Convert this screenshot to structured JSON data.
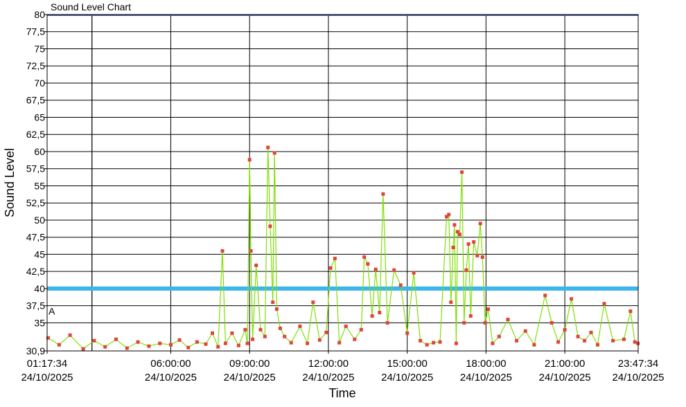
{
  "chart_data": {
    "type": "line",
    "title": "Sound Level Chart",
    "xlabel": "Time",
    "ylabel": "Sound Level",
    "ylim": [
      30.9,
      80
    ],
    "y_ticks": [
      "80",
      "77,5",
      "75",
      "72,5",
      "70",
      "67,5",
      "65",
      "62,5",
      "60",
      "57,5",
      "55",
      "52,5",
      "50",
      "47,5",
      "45",
      "42,5",
      "40",
      "37,5",
      "35",
      "30,9"
    ],
    "x_ticks": [
      {
        "time": "01:17:34",
        "date": "24/10/2025"
      },
      {
        "time": "06:00:00",
        "date": "24/10/2025"
      },
      {
        "time": "09:00:00",
        "date": "24/10/2025"
      },
      {
        "time": "12:00:00",
        "date": "24/10/2025"
      },
      {
        "time": "15:00:00",
        "date": "24/10/2025"
      },
      {
        "time": "18:00:00",
        "date": "24/10/2025"
      },
      {
        "time": "21:00:00",
        "date": "24/10/2025"
      },
      {
        "time": "23:47:34",
        "date": "24/10/2025"
      }
    ],
    "xlim": [
      "01:17:34",
      "23:47:34"
    ],
    "grid": true,
    "threshold": {
      "value": 40,
      "color": "#3cb4ec"
    },
    "top_line": {
      "value": 80,
      "color": "#4a5a9a"
    },
    "marker_label": {
      "text": "A",
      "value": 36.7
    },
    "series": [
      {
        "color": "#7ee000",
        "marker_color": "#e0443a",
        "points": [
          [
            "01:20",
            32.8
          ],
          [
            "01:45",
            31.8
          ],
          [
            "02:10",
            33.2
          ],
          [
            "02:40",
            31.2
          ],
          [
            "03:05",
            32.4
          ],
          [
            "03:30",
            31.5
          ],
          [
            "03:55",
            32.6
          ],
          [
            "04:20",
            31.3
          ],
          [
            "04:45",
            32.2
          ],
          [
            "05:10",
            31.6
          ],
          [
            "05:35",
            32.0
          ],
          [
            "06:00",
            31.8
          ],
          [
            "06:20",
            32.5
          ],
          [
            "06:40",
            31.4
          ],
          [
            "07:00",
            32.2
          ],
          [
            "07:20",
            31.9
          ],
          [
            "07:35",
            33.5
          ],
          [
            "07:48",
            31.5
          ],
          [
            "07:58",
            45.5
          ],
          [
            "08:05",
            32.0
          ],
          [
            "08:20",
            33.5
          ],
          [
            "08:35",
            31.7
          ],
          [
            "08:50",
            34.0
          ],
          [
            "08:55",
            32.0
          ],
          [
            "09:00",
            58.8
          ],
          [
            "09:03",
            45.5
          ],
          [
            "09:07",
            32.6
          ],
          [
            "09:15",
            43.4
          ],
          [
            "09:25",
            34.0
          ],
          [
            "09:35",
            33.0
          ],
          [
            "09:42",
            60.6
          ],
          [
            "09:47",
            49.1
          ],
          [
            "09:53",
            38.0
          ],
          [
            "09:57",
            59.8
          ],
          [
            "10:02",
            37.0
          ],
          [
            "10:10",
            34.2
          ],
          [
            "10:20",
            33.0
          ],
          [
            "10:35",
            32.1
          ],
          [
            "10:55",
            34.5
          ],
          [
            "11:12",
            32.0
          ],
          [
            "11:25",
            38.0
          ],
          [
            "11:40",
            32.5
          ],
          [
            "11:55",
            33.6
          ],
          [
            "12:05",
            43.0
          ],
          [
            "12:15",
            44.4
          ],
          [
            "12:25",
            32.1
          ],
          [
            "12:40",
            34.5
          ],
          [
            "13:00",
            32.6
          ],
          [
            "13:15",
            34.0
          ],
          [
            "13:22",
            44.6
          ],
          [
            "13:30",
            43.6
          ],
          [
            "13:40",
            36.0
          ],
          [
            "13:48",
            42.8
          ],
          [
            "13:57",
            36.5
          ],
          [
            "14:05",
            53.8
          ],
          [
            "14:15",
            35.0
          ],
          [
            "14:30",
            42.7
          ],
          [
            "14:45",
            40.5
          ],
          [
            "15:00",
            33.5
          ],
          [
            "15:15",
            42.3
          ],
          [
            "15:30",
            32.4
          ],
          [
            "15:45",
            31.8
          ],
          [
            "16:00",
            32.1
          ],
          [
            "16:15",
            32.2
          ],
          [
            "16:30",
            50.5
          ],
          [
            "16:35",
            50.8
          ],
          [
            "16:40",
            38.0
          ],
          [
            "16:45",
            46.0
          ],
          [
            "16:48",
            49.3
          ],
          [
            "16:52",
            32.0
          ],
          [
            "16:55",
            48.3
          ],
          [
            "17:00",
            47.9
          ],
          [
            "17:05",
            57.0
          ],
          [
            "17:10",
            35.0
          ],
          [
            "17:15",
            42.7
          ],
          [
            "17:20",
            46.5
          ],
          [
            "17:25",
            36.0
          ],
          [
            "17:32",
            46.8
          ],
          [
            "17:40",
            44.8
          ],
          [
            "17:47",
            49.5
          ],
          [
            "17:52",
            44.6
          ],
          [
            "17:58",
            35.0
          ],
          [
            "18:05",
            37.0
          ],
          [
            "18:15",
            32.0
          ],
          [
            "18:30",
            33.0
          ],
          [
            "18:50",
            35.5
          ],
          [
            "19:10",
            32.4
          ],
          [
            "19:30",
            33.8
          ],
          [
            "19:50",
            31.8
          ],
          [
            "20:15",
            39.0
          ],
          [
            "20:30",
            35.0
          ],
          [
            "20:45",
            32.2
          ],
          [
            "21:00",
            34.0
          ],
          [
            "21:15",
            38.5
          ],
          [
            "21:30",
            33.0
          ],
          [
            "21:45",
            32.4
          ],
          [
            "22:00",
            33.6
          ],
          [
            "22:15",
            31.8
          ],
          [
            "22:30",
            37.8
          ],
          [
            "22:50",
            32.4
          ],
          [
            "23:15",
            32.6
          ],
          [
            "23:30",
            36.7
          ],
          [
            "23:40",
            32.2
          ],
          [
            "23:47",
            32.0
          ]
        ]
      }
    ]
  }
}
